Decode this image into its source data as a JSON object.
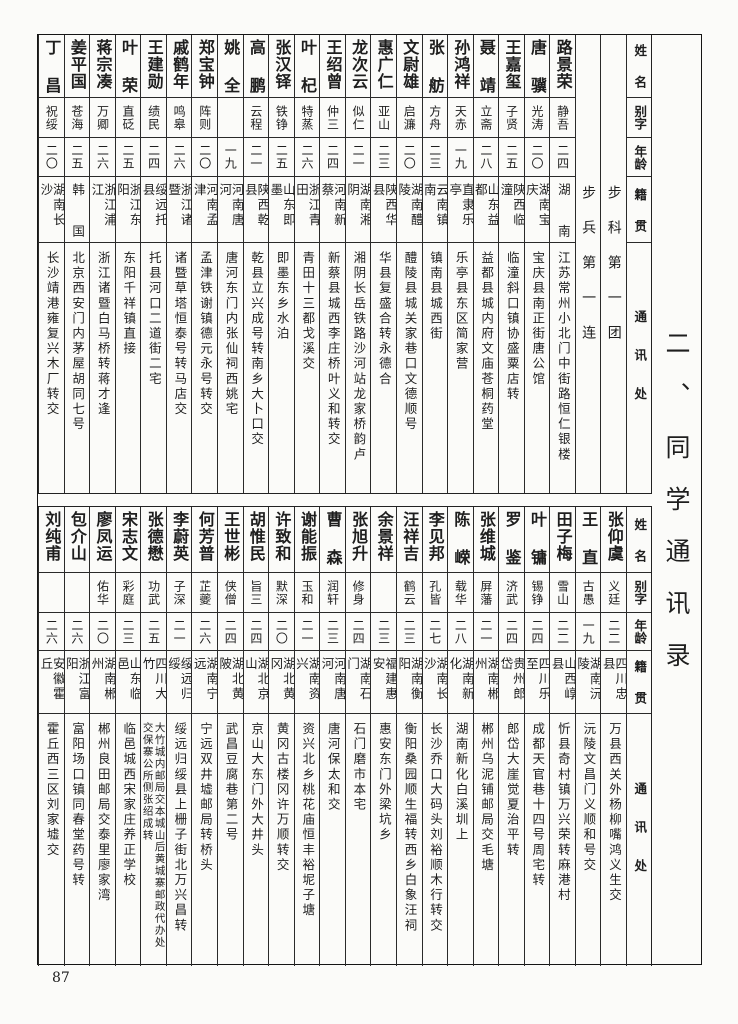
{
  "title": "二、同学通讯录",
  "page_number": "87",
  "headers": {
    "name": "姓名",
    "courtesy": "别字",
    "age": "年龄",
    "native_place": "籍贯",
    "address": "通讯处"
  },
  "top_table": {
    "units": [
      "步科第一团",
      "步兵第一连"
    ],
    "members": [
      {
        "name": "路景荣",
        "courtesy": "静吾",
        "age": "二四",
        "native_place": "湖南",
        "address": "江苏常州小北门中街路恒仁银楼"
      },
      {
        "name": "唐骥",
        "courtesy": "光涛",
        "age": "二〇",
        "native_place": "湖南宝庆",
        "address": "宝庆县南正街唐公馆"
      },
      {
        "name": "王嘉玺",
        "courtesy": "子贤",
        "age": "二五",
        "native_place": "陕西临潼",
        "address": "临潼斜口镇协盛粟店转"
      },
      {
        "name": "聂靖",
        "courtesy": "立斋",
        "age": "二八",
        "native_place": "山东益都",
        "address": "益都县城内府文庙苍桐药堂"
      },
      {
        "name": "孙鸿祥",
        "courtesy": "天赤",
        "age": "一九",
        "native_place": "直隶乐亭",
        "address": "乐亭县东区简家营"
      },
      {
        "name": "张舫",
        "courtesy": "方舟",
        "age": "二三",
        "native_place": "云南镇南",
        "address": "镇南县城西街"
      },
      {
        "name": "文尉雄",
        "courtesy": "启濂",
        "age": "二〇",
        "native_place": "湖南醴陵",
        "address": "醴陵县城关家巷口文德顺号"
      },
      {
        "name": "惠广仁",
        "courtesy": "亚山",
        "age": "二三",
        "native_place": "陕西华县",
        "address": "华县复盛合转永德合"
      },
      {
        "name": "龙次云",
        "courtesy": "似仁",
        "age": "二一",
        "native_place": "湖南湘阴",
        "address": "湘阴长岳铁路沙河站龙家桥韵卢"
      },
      {
        "name": "王绍曾",
        "courtesy": "仲三",
        "age": "二四",
        "native_place": "河南新蔡",
        "address": "新蔡县城西李庄桥叶义和转交"
      },
      {
        "name": "叶杞",
        "courtesy": "特蒸",
        "age": "二六",
        "native_place": "浙江青田",
        "address": "青田十三都戈溪交"
      },
      {
        "name": "张汉铎",
        "courtesy": "铁铮",
        "age": "二五",
        "native_place": "山东即墨",
        "address": "即墨东乡水泊"
      },
      {
        "name": "高鹏",
        "courtesy": "云程",
        "age": "二一",
        "native_place": "陕西乾县",
        "address": "乾县立兴成号转南乡大卜口交"
      },
      {
        "name": "姚全",
        "courtesy": "",
        "age": "一九",
        "native_place": "河南唐河",
        "address": "唐河东门内张仙祠西姚宅"
      },
      {
        "name": "郑宝钟",
        "courtesy": "阵则",
        "age": "二〇",
        "native_place": "河南孟津",
        "address": "孟津铁谢镇德元永号转交"
      },
      {
        "name": "戚鹤年",
        "courtesy": "鸣皋",
        "age": "二六",
        "native_place": "浙江诸暨",
        "address": "诸暨草塔恒泰号转马店交"
      },
      {
        "name": "王建勋",
        "courtesy": "绩民",
        "age": "二四",
        "native_place": "绥远托县",
        "address": "托县河口二道街二宅"
      },
      {
        "name": "叶荣",
        "courtesy": "直砭",
        "age": "二五",
        "native_place": "浙江东阳",
        "address": "东阳千祥镇直接"
      },
      {
        "name": "蒋宗凑",
        "courtesy": "万卿",
        "age": "二六",
        "native_place": "浙江浦江",
        "address": "浙江诸暨白马桥转蒋才逢"
      },
      {
        "name": "姜平国",
        "courtesy": "苍海",
        "age": "二五",
        "native_place": "韩国",
        "address": "北京西安门内茅屋胡同七号"
      },
      {
        "name": "丁昌",
        "courtesy": "祝绥",
        "age": "二〇",
        "native_place": "湖南长沙",
        "address": "长沙靖港雍复兴木厂转交"
      }
    ]
  },
  "bottom_table": {
    "members": [
      {
        "name": "张仰虞",
        "courtesy": "义廷",
        "age": "二二",
        "native_place": "四川忠县",
        "address": "万县西关外杨柳嘴鸿义生交"
      },
      {
        "name": "王直",
        "courtesy": "古愚",
        "age": "一九",
        "native_place": "湖南沅陵",
        "address": "沅陵文昌门义顺和号交"
      },
      {
        "name": "田子梅",
        "courtesy": "雪山",
        "age": "二二",
        "native_place": "山西崞县",
        "address": "忻县奇村镇万兴荣转麻港村"
      },
      {
        "name": "叶镛",
        "courtesy": "锡铮",
        "age": "二四",
        "native_place": "四川乐至",
        "address": "成都天官巷十四号周宅转"
      },
      {
        "name": "罗鉴",
        "courtesy": "济武",
        "age": "二四",
        "native_place": "贵州郎岱",
        "address": "郎岱大崖觉夏治平转"
      },
      {
        "name": "张维城",
        "courtesy": "屏藩",
        "age": "二一",
        "native_place": "湖南郴州",
        "address": "郴州乌泥铺邮局交毛塘"
      },
      {
        "name": "陈嵘",
        "courtesy": "载华",
        "age": "二八",
        "native_place": "湖南新化",
        "address": "湖南新化白溪圳上"
      },
      {
        "name": "李见邦",
        "courtesy": "孔皆",
        "age": "二七",
        "native_place": "湖南长沙",
        "address": "长沙乔口大码头刘裕顺木行转交"
      },
      {
        "name": "汪祥吉",
        "courtesy": "鹤云",
        "age": "二三",
        "native_place": "湖南衡阳",
        "address": "衡阳桑园顺生福转西乡白象汪祠"
      },
      {
        "name": "余景祥",
        "courtesy": "",
        "age": "二三",
        "native_place": "福建惠安",
        "address": "惠安东门外梁坑乡"
      },
      {
        "name": "张旭升",
        "courtesy": "修身",
        "age": "二四",
        "native_place": "湖南石门",
        "address": "石门磨市本宅"
      },
      {
        "name": "曹森",
        "courtesy": "润轩",
        "age": "二三",
        "native_place": "河南唐河",
        "address": "唐河保太和交"
      },
      {
        "name": "谢能振",
        "courtesy": "玉和",
        "age": "二一",
        "native_place": "湖南资兴",
        "address": "资兴北乡桃花庙恒丰裕坭子塘"
      },
      {
        "name": "许致和",
        "courtesy": "默深",
        "age": "二〇",
        "native_place": "湖北黄冈",
        "address": "黄冈古楼冈许万顺转交"
      },
      {
        "name": "胡惟民",
        "courtesy": "旨三",
        "age": "二四",
        "native_place": "湖北京山",
        "address": "京山大东门外大井头"
      },
      {
        "name": "王世彬",
        "courtesy": "侠僧",
        "age": "二四",
        "native_place": "湖北黄陂",
        "address": "武昌豆腐巷第二号"
      },
      {
        "name": "何芳普",
        "courtesy": "芷夔",
        "age": "二六",
        "native_place": "湖南宁远",
        "address": "宁远双井墟邮局转桥头"
      },
      {
        "name": "李蔚英",
        "courtesy": "子深",
        "age": "二一",
        "native_place": "绥远归绥",
        "address": "绥远归绥县上栅子街北万兴昌转"
      },
      {
        "name": "张德懋",
        "courtesy": "功武",
        "age": "二五",
        "native_place": "四川大竹",
        "address": "大竹城内邮局交本城山后黄城寨邮政代办处\n交保寨公所侧张绍成转"
      },
      {
        "name": "宋志文",
        "courtesy": "彩庭",
        "age": "二三",
        "native_place": "山东临邑",
        "address": "临邑城西宋家庄养正学校"
      },
      {
        "name": "廖凤运",
        "courtesy": "佑华",
        "age": "二〇",
        "native_place": "湖南郴州",
        "address": "郴州良田邮局交泰里廖家湾"
      },
      {
        "name": "包介山",
        "courtesy": "",
        "age": "二六",
        "native_place": "浙江富阳",
        "address": "富阳场口镇同春堂药号转"
      },
      {
        "name": "刘纯甫",
        "courtesy": "",
        "age": "二六",
        "native_place": "安徽霍丘",
        "address": "霍丘西三区刘家墟交"
      }
    ]
  }
}
